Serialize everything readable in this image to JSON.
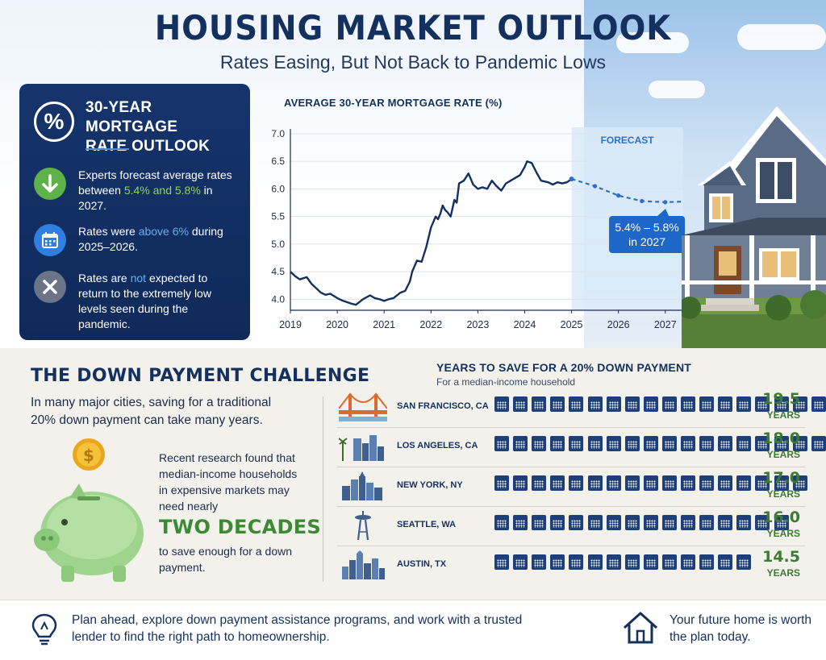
{
  "header": {
    "title": "HOUSING MARKET OUTLOOK",
    "subtitle": "Rates Easing, But Not Back to Pandemic Lows"
  },
  "outlook_card": {
    "icon": "percent-icon",
    "title": "30-YEAR MORTGAGE RATE OUTLOOK",
    "items": [
      {
        "icon": "arrow-down-icon",
        "color": "#5db24a",
        "text_before": "Experts forecast average rates between ",
        "highlight": "5.4% and 5.8%",
        "text_after": " in 2027."
      },
      {
        "icon": "calendar-icon",
        "color": "#2f7fe0",
        "text_before": "Rates were ",
        "highlight": "above 6%",
        "text_after": " during 2025–2026."
      },
      {
        "icon": "x-icon",
        "color": "#6b7587",
        "text_before": "Rates are ",
        "highlight": "not",
        "text_after": " expected to return to the extremely low levels seen during the pandemic."
      }
    ]
  },
  "chart_data": {
    "type": "line",
    "title": "AVERAGE 30-YEAR MORTGAGE RATE (%)",
    "xlabel": "",
    "ylabel": "",
    "x_ticks": [
      "2019",
      "2020",
      "2021",
      "2022",
      "2023",
      "2024",
      "2025",
      "2026",
      "2027"
    ],
    "y_ticks": [
      "4.0",
      "4.5",
      "5.0",
      "5.5",
      "6.0",
      "6.5",
      "7.0"
    ],
    "ylim": [
      3.8,
      7.0
    ],
    "xlim": [
      2019,
      2027.4
    ],
    "forecast_label": "FORECAST",
    "forecast_start": 2025,
    "forecast_annotation": [
      "5.4% – 5.8%",
      "in 2027"
    ],
    "series": [
      {
        "role": "historical",
        "x": [
          2019.0,
          2019.1,
          2019.2,
          2019.35,
          2019.45,
          2019.55,
          2019.65,
          2019.75,
          2019.85,
          2020.0,
          2020.1,
          2020.2,
          2020.3,
          2020.4,
          2020.55,
          2020.7,
          2020.8,
          2020.9,
          2021.0,
          2021.1,
          2021.2,
          2021.35,
          2021.45,
          2021.55,
          2021.6,
          2021.7,
          2021.8,
          2021.9,
          2022.0,
          2022.1,
          2022.15,
          2022.2,
          2022.25,
          2022.3,
          2022.35,
          2022.42,
          2022.5,
          2022.55,
          2022.6,
          2022.7,
          2022.8,
          2022.9,
          2023.0,
          2023.1,
          2023.2,
          2023.3,
          2023.4,
          2023.5,
          2023.6,
          2023.7,
          2023.8,
          2023.9,
          2024.0,
          2024.05,
          2024.15,
          2024.25,
          2024.35,
          2024.5,
          2024.6,
          2024.7,
          2024.8,
          2024.9,
          2025.0
        ],
        "y": [
          4.5,
          4.42,
          4.36,
          4.4,
          4.28,
          4.2,
          4.12,
          4.08,
          4.1,
          4.02,
          3.98,
          3.95,
          3.92,
          3.9,
          4.0,
          4.07,
          4.02,
          4.0,
          3.97,
          4.0,
          4.02,
          4.12,
          4.15,
          4.32,
          4.5,
          4.7,
          4.68,
          4.95,
          5.3,
          5.5,
          5.45,
          5.55,
          5.7,
          5.62,
          5.58,
          5.5,
          5.8,
          5.75,
          6.1,
          6.15,
          6.28,
          6.08,
          6.0,
          6.03,
          6.0,
          6.15,
          6.05,
          5.97,
          6.1,
          6.15,
          6.2,
          6.25,
          6.4,
          6.5,
          6.47,
          6.3,
          6.15,
          6.12,
          6.08,
          6.12,
          6.1,
          6.12,
          6.18
        ]
      },
      {
        "role": "forecast",
        "x": [
          2025.0,
          2025.5,
          2026.0,
          2026.5,
          2027.0,
          2027.35
        ],
        "y": [
          6.18,
          6.05,
          5.88,
          5.78,
          5.76,
          5.77
        ]
      }
    ]
  },
  "down_payment": {
    "title": "THE DOWN PAYMENT CHALLENGE",
    "intro": "In many major cities, saving for a traditional 20% down payment can take many years.",
    "research": "Recent research found that median-income households in expensive markets may need nearly",
    "emphasis": "TWO DECADES",
    "research_end": "to save enough for a down payment.",
    "coin_symbol": "$"
  },
  "years_chart": {
    "title": "YEARS TO SAVE FOR A 20% DOWN PAYMENT",
    "subtitle": "For a median-income household",
    "unit": "YEARS",
    "cities": [
      {
        "name": "SAN FRANCISCO, CA",
        "years": 19.5,
        "label": "19.5",
        "icon": "golden-gate-bridge-icon"
      },
      {
        "name": "LOS ANGELES, CA",
        "years": 18.0,
        "label": "18.0",
        "icon": "la-skyline-icon"
      },
      {
        "name": "NEW YORK, NY",
        "years": 17.0,
        "label": "17.0",
        "icon": "ny-skyline-icon"
      },
      {
        "name": "SEATTLE, WA",
        "years": 16.0,
        "label": "16.0",
        "icon": "space-needle-icon"
      },
      {
        "name": "AUSTIN, TX",
        "years": 14.5,
        "label": "14.5",
        "icon": "austin-skyline-icon"
      }
    ]
  },
  "footer": {
    "text": "Plan ahead, explore down payment assistance programs, and work with a trusted lender to find the right path to homeownership.",
    "tagline": "Your future home is worth the plan today."
  },
  "colors": {
    "navy": "#14305e",
    "green": "#3d7a32",
    "forecast_blue": "#1f66c9",
    "calendar": "#1e3f78"
  }
}
